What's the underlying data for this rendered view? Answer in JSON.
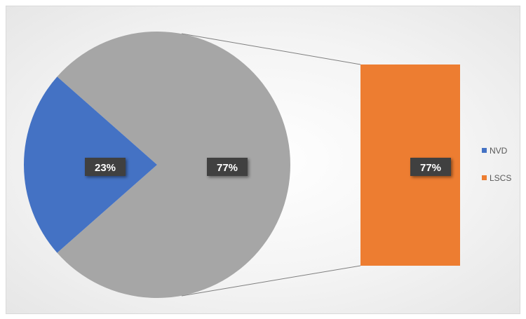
{
  "chart_data": {
    "type": "pie",
    "subtype": "pie-of-bar",
    "title": "",
    "categories": [
      "NVD",
      "LSCS"
    ],
    "values": [
      23,
      77
    ],
    "unit": "%",
    "colors": {
      "NVD": "#4472c4",
      "LSCS_pie": "#a6a6a6",
      "LSCS_bar": "#ed7d31"
    },
    "data_labels": {
      "NVD": "23%",
      "LSCS_pie": "77%",
      "LSCS_bar": "77%"
    },
    "legend": {
      "position": "right",
      "entries": [
        "NVD",
        "LSCS"
      ]
    },
    "grid": false
  }
}
